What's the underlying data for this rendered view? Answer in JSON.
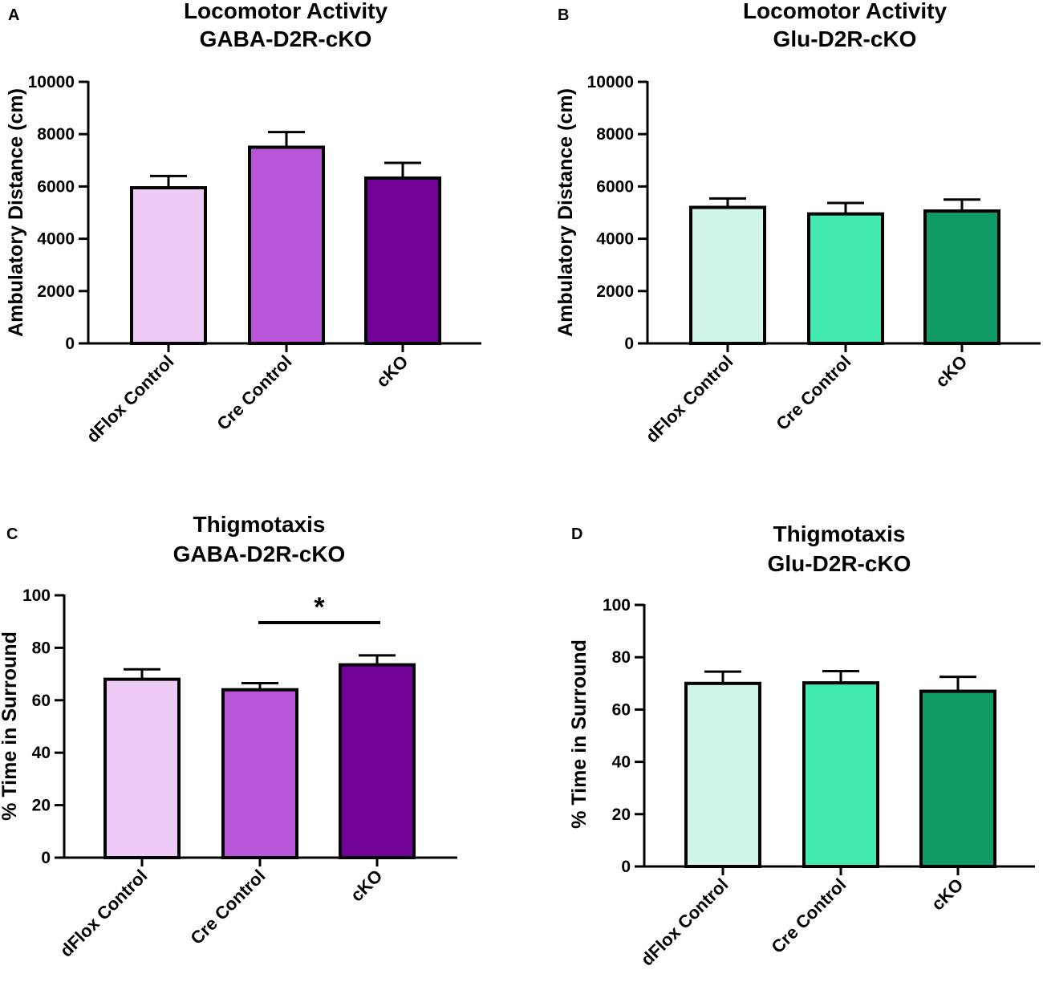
{
  "chart_data": [
    {
      "panel": "A",
      "type": "bar",
      "title_lines": [
        "Locomotor Activity",
        "GABA-D2R-cKO"
      ],
      "ylabel": "Ambulatory Distance (cm)",
      "xlabel": "",
      "ylim": [
        0,
        10000
      ],
      "yticks": [
        0,
        2000,
        4000,
        6000,
        8000,
        10000
      ],
      "categories": [
        "dFlox Control",
        "Cre Control",
        "cKO"
      ],
      "values": [
        5950,
        7500,
        6320
      ],
      "errors": [
        450,
        580,
        580
      ],
      "colors": [
        "#eecbf6",
        "#b955d8",
        "#730398"
      ],
      "significance": []
    },
    {
      "panel": "B",
      "type": "bar",
      "title_lines": [
        "Locomotor Activity",
        "Glu-D2R-cKO"
      ],
      "ylabel": "Ambulatory Distance (cm)",
      "xlabel": "",
      "ylim": [
        0,
        10000
      ],
      "yticks": [
        0,
        2000,
        4000,
        6000,
        8000,
        10000
      ],
      "categories": [
        "dFlox Control",
        "Cre Control",
        "cKO"
      ],
      "values": [
        5200,
        4950,
        5060
      ],
      "errors": [
        340,
        420,
        440
      ],
      "colors": [
        "#d0f6e9",
        "#42ebad",
        "#0f9b63"
      ],
      "significance": []
    },
    {
      "panel": "C",
      "type": "bar",
      "title_lines": [
        "Thigmotaxis",
        "GABA-D2R-cKO"
      ],
      "ylabel": "% Time in Surround",
      "xlabel": "",
      "ylim": [
        0,
        100
      ],
      "yticks": [
        0,
        20,
        40,
        60,
        80,
        100
      ],
      "categories": [
        "dFlox Control",
        "Cre Control",
        "cKO"
      ],
      "values": [
        68,
        64,
        73.5
      ],
      "errors": [
        3.8,
        2.5,
        3.6
      ],
      "colors": [
        "#eecbf6",
        "#b955d8",
        "#730398"
      ],
      "significance": [
        {
          "from": 1,
          "to": 2,
          "label": "*"
        }
      ]
    },
    {
      "panel": "D",
      "type": "bar",
      "title_lines": [
        "Thigmotaxis",
        "Glu-D2R-cKO"
      ],
      "ylabel": "% Time in Surround",
      "xlabel": "",
      "ylim": [
        0,
        100
      ],
      "yticks": [
        0,
        20,
        40,
        60,
        80,
        100
      ],
      "categories": [
        "dFlox Control",
        "Cre Control",
        "cKO"
      ],
      "values": [
        70,
        70.2,
        67
      ],
      "errors": [
        4.5,
        4.5,
        5.5
      ],
      "colors": [
        "#d0f6e9",
        "#42ebad",
        "#0f9b63"
      ],
      "significance": []
    }
  ]
}
